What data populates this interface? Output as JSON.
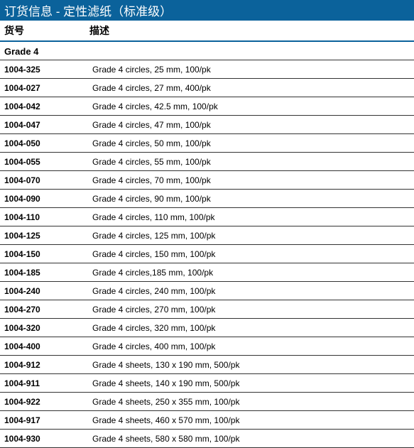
{
  "colors": {
    "title_bg": "#0b629b",
    "title_text": "#ffffff",
    "header_border": "#0b629b",
    "row_border": "#333333",
    "page_bg": "#ffffff",
    "text": "#000000"
  },
  "title": "订货信息 - 定性滤纸（标准级）",
  "columns": {
    "code": "货号",
    "desc": "描述"
  },
  "section": "Grade 4",
  "rows": [
    {
      "code": "1004-325",
      "desc": "Grade 4 circles, 25 mm, 100/pk"
    },
    {
      "code": "1004-027",
      "desc": "Grade 4 circles, 27 mm, 400/pk"
    },
    {
      "code": "1004-042",
      "desc": "Grade 4 circles, 42.5 mm, 100/pk"
    },
    {
      "code": "1004-047",
      "desc": "Grade 4 circles, 47 mm, 100/pk"
    },
    {
      "code": "1004-050",
      "desc": "Grade 4 circles, 50 mm, 100/pk"
    },
    {
      "code": "1004-055",
      "desc": "Grade 4 circles, 55 mm, 100/pk"
    },
    {
      "code": "1004-070",
      "desc": "Grade 4 circles, 70 mm, 100/pk"
    },
    {
      "code": "1004-090",
      "desc": "Grade 4 circles, 90 mm, 100/pk"
    },
    {
      "code": "1004-110",
      "desc": "Grade 4 circles, 110 mm, 100/pk"
    },
    {
      "code": "1004-125",
      "desc": "Grade 4 circles, 125 mm, 100/pk"
    },
    {
      "code": "1004-150",
      "desc": "Grade 4 circles, 150 mm, 100/pk"
    },
    {
      "code": "1004-185",
      "desc": "Grade 4 circles,185 mm, 100/pk"
    },
    {
      "code": "1004-240",
      "desc": "Grade 4 circles, 240 mm, 100/pk"
    },
    {
      "code": "1004-270",
      "desc": "Grade 4 circles, 270 mm, 100/pk"
    },
    {
      "code": "1004-320",
      "desc": "Grade 4 circles, 320 mm, 100/pk"
    },
    {
      "code": "1004-400",
      "desc": "Grade 4 circles, 400 mm, 100/pk"
    },
    {
      "code": "1004-912",
      "desc": "Grade 4 sheets, 130 x 190 mm, 500/pk"
    },
    {
      "code": "1004-911",
      "desc": "Grade 4 sheets, 140 x 190 mm, 500/pk"
    },
    {
      "code": "1004-922",
      "desc": "Grade 4 sheets, 250 x 355 mm, 100/pk"
    },
    {
      "code": "1004-917",
      "desc": "Grade 4 sheets, 460 x 570 mm, 100/pk"
    },
    {
      "code": "1004-930",
      "desc": "Grade 4 sheets, 580 x 580 mm, 100/pk"
    }
  ]
}
